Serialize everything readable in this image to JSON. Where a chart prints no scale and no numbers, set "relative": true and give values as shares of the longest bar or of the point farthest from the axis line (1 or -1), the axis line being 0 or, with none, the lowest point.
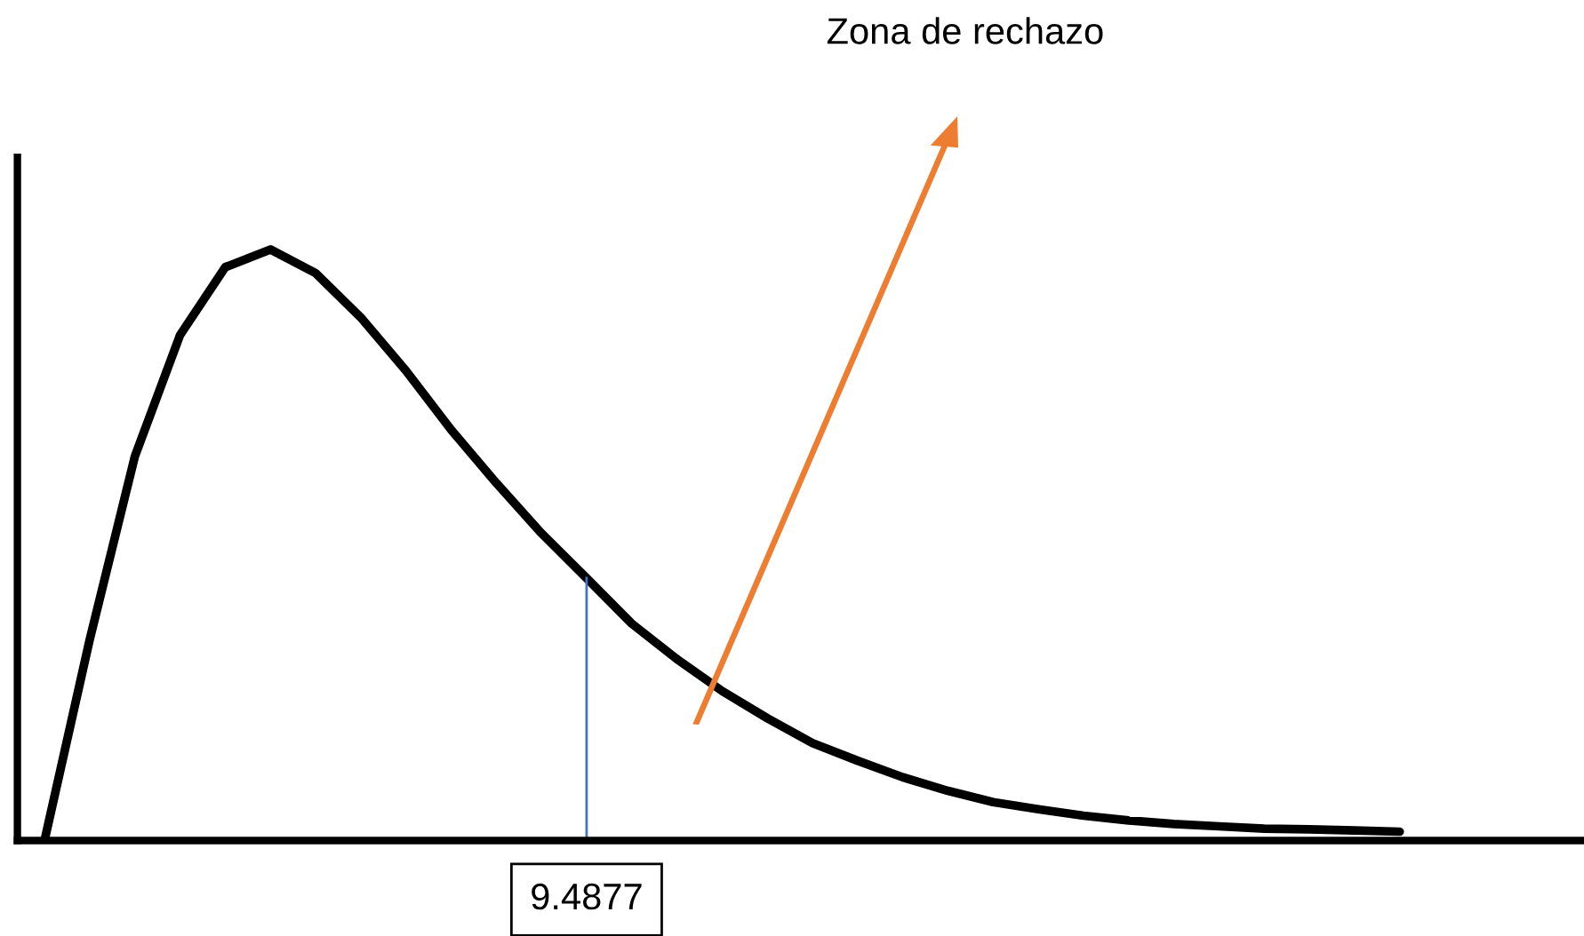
{
  "chart_data": {
    "type": "line",
    "relative": true,
    "categories": [
      null,
      null,
      null,
      null,
      null,
      null,
      null,
      null,
      null,
      null,
      null,
      null,
      null,
      null,
      null,
      null,
      null,
      null,
      null,
      null,
      null,
      null,
      null,
      null,
      null,
      null,
      null,
      null,
      null,
      null,
      null
    ],
    "series": [
      {
        "color": "#000000",
        "values": [
          0,
          0.34,
          0.65,
          0.855,
          0.97,
          1.0,
          0.96,
          0.885,
          0.795,
          0.695,
          0.605,
          0.52,
          0.444,
          0.367,
          0.307,
          0.253,
          0.207,
          0.165,
          0.135,
          0.107,
          0.084,
          0.065,
          0.053,
          0.042,
          0.034,
          0.028,
          0.024,
          0.02,
          0.019,
          0.017,
          0.015
        ]
      }
    ],
    "annotations": [
      {
        "text": "9.4877",
        "y": 0.444
      },
      "Zona de rechazo"
    ],
    "legend": false,
    "marker": "none",
    "line_style": "solid"
  }
}
